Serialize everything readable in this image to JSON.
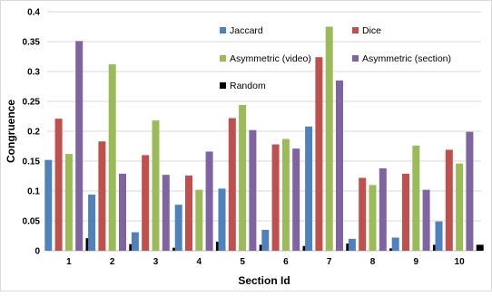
{
  "chart_data": {
    "type": "bar",
    "title": "",
    "xlabel": "Section Id",
    "ylabel": "Congruence",
    "categories": [
      "1",
      "2",
      "3",
      "4",
      "5",
      "6",
      "7",
      "8",
      "9",
      "10"
    ],
    "ylim": [
      0,
      0.4
    ],
    "yticks": [
      "0",
      "0.05",
      "0.1",
      "0.15",
      "0.2",
      "0.25",
      "0.3",
      "0.35",
      "0.4"
    ],
    "ytick_values": [
      0,
      0.05,
      0.1,
      0.15,
      0.2,
      0.25,
      0.3,
      0.35,
      0.4
    ],
    "grid": true,
    "legend_position": "top-right",
    "series": [
      {
        "name": "Jaccard",
        "color": "#4F81BD",
        "values": [
          0.152,
          0.094,
          0.031,
          0.077,
          0.104,
          0.035,
          0.208,
          0.02,
          0.022,
          0.049
        ]
      },
      {
        "name": "Dice",
        "color": "#C0504D",
        "values": [
          0.221,
          0.183,
          0.16,
          0.126,
          0.222,
          0.178,
          0.324,
          0.122,
          0.129,
          0.169
        ]
      },
      {
        "name": "Asymmetric (video)",
        "color": "#9BBB59",
        "values": [
          0.162,
          0.312,
          0.218,
          0.102,
          0.244,
          0.187,
          0.375,
          0.11,
          0.176,
          0.146
        ]
      },
      {
        "name": "Asymmetric (section)",
        "color": "#8064A2",
        "values": [
          0.351,
          0.129,
          0.127,
          0.166,
          0.202,
          0.171,
          0.285,
          0.138,
          0.102,
          0.199
        ]
      },
      {
        "name": "Random",
        "color": "#000000",
        "values": [
          0.021,
          0.011,
          0.005,
          0.015,
          0.01,
          0.008,
          0.012,
          0.004,
          0.01,
          0.01
        ]
      }
    ]
  }
}
